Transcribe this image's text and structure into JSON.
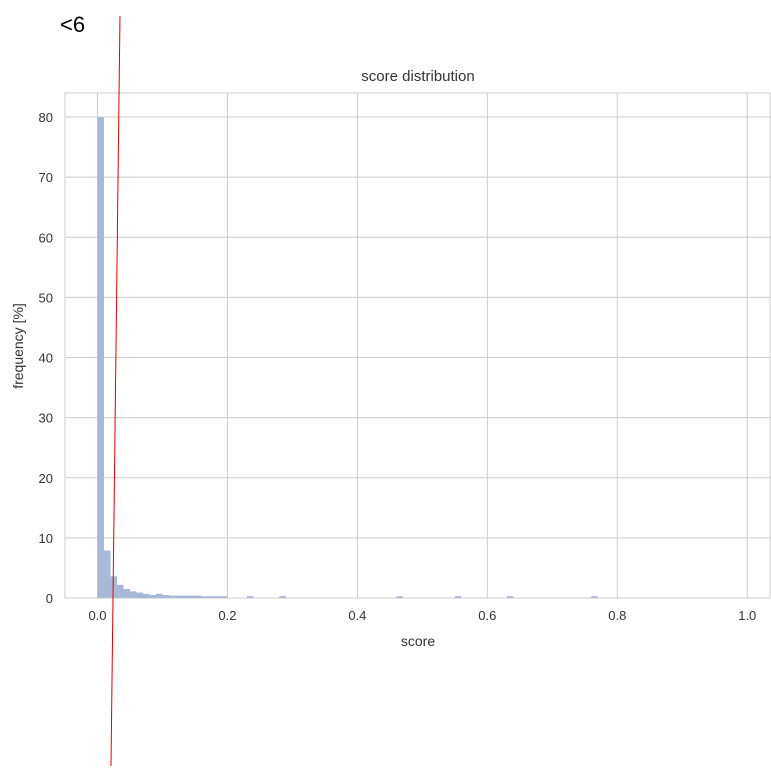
{
  "annotation": "<6",
  "chart_data": {
    "type": "bar",
    "title": "score distribution",
    "xlabel": "score",
    "ylabel": "frequency [%]",
    "xlim": [
      -0.05,
      1.035
    ],
    "ylim": [
      0,
      84
    ],
    "xticks": [
      0.0,
      0.2,
      0.4,
      0.6,
      0.8,
      1.0
    ],
    "xtick_labels": [
      "0.0",
      "0.2",
      "0.4",
      "0.6",
      "0.8",
      "1.0"
    ],
    "yticks": [
      0,
      10,
      20,
      30,
      40,
      50,
      60,
      70,
      80
    ],
    "ytick_labels": [
      "0",
      "10",
      "20",
      "30",
      "40",
      "50",
      "60",
      "70",
      "80"
    ],
    "grid": true,
    "bin_width": 0.01,
    "bins": [
      {
        "x": 0.0,
        "y": 80.0
      },
      {
        "x": 0.01,
        "y": 7.9
      },
      {
        "x": 0.02,
        "y": 3.6
      },
      {
        "x": 0.03,
        "y": 2.2
      },
      {
        "x": 0.04,
        "y": 1.5
      },
      {
        "x": 0.05,
        "y": 1.1
      },
      {
        "x": 0.06,
        "y": 0.9
      },
      {
        "x": 0.07,
        "y": 0.7
      },
      {
        "x": 0.08,
        "y": 0.5
      },
      {
        "x": 0.09,
        "y": 0.7
      },
      {
        "x": 0.1,
        "y": 0.5
      },
      {
        "x": 0.11,
        "y": 0.4
      },
      {
        "x": 0.12,
        "y": 0.4
      },
      {
        "x": 0.13,
        "y": 0.4
      },
      {
        "x": 0.14,
        "y": 0.4
      },
      {
        "x": 0.15,
        "y": 0.4
      },
      {
        "x": 0.16,
        "y": 0.3
      },
      {
        "x": 0.17,
        "y": 0.3
      },
      {
        "x": 0.18,
        "y": 0.3
      },
      {
        "x": 0.19,
        "y": 0.3
      },
      {
        "x": 0.23,
        "y": 0.3
      },
      {
        "x": 0.28,
        "y": 0.3
      },
      {
        "x": 0.46,
        "y": 0.3
      },
      {
        "x": 0.55,
        "y": 0.3
      },
      {
        "x": 0.63,
        "y": 0.3
      },
      {
        "x": 0.76,
        "y": 0.3
      }
    ],
    "bar_color": "#a8b8d8",
    "grid_color": "#cccccc",
    "threshold_line": {
      "x": 0.03,
      "color": "#e00000"
    }
  }
}
